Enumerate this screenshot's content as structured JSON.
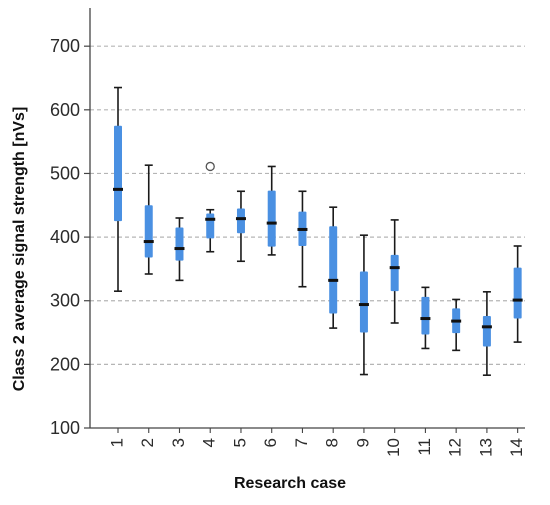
{
  "chart_data": {
    "type": "boxplot",
    "title": "",
    "xlabel": "Research case",
    "ylabel": "Class 2 average signal strength [nVs]",
    "ylim": [
      100,
      760
    ],
    "yticks": [
      100,
      200,
      300,
      400,
      500,
      600,
      700
    ],
    "grid": "horizontal dashed",
    "categories": [
      "1",
      "2",
      "3",
      "4",
      "5",
      "6",
      "7",
      "8",
      "9",
      "10",
      "11",
      "12",
      "13",
      "14"
    ],
    "boxes": [
      {
        "min": 315,
        "q1": 425,
        "median": 475,
        "q3": 575,
        "max": 635
      },
      {
        "min": 342,
        "q1": 368,
        "median": 393,
        "q3": 450,
        "max": 513
      },
      {
        "min": 332,
        "q1": 363,
        "median": 382,
        "q3": 415,
        "max": 430
      },
      {
        "min": 377,
        "q1": 398,
        "median": 428,
        "q3": 437,
        "max": 443
      },
      {
        "min": 362,
        "q1": 406,
        "median": 429,
        "q3": 445,
        "max": 472
      },
      {
        "min": 372,
        "q1": 385,
        "median": 422,
        "q3": 473,
        "max": 511
      },
      {
        "min": 322,
        "q1": 386,
        "median": 412,
        "q3": 440,
        "max": 472
      },
      {
        "min": 257,
        "q1": 280,
        "median": 332,
        "q3": 417,
        "max": 447
      },
      {
        "min": 184,
        "q1": 250,
        "median": 294,
        "q3": 346,
        "max": 403
      },
      {
        "min": 265,
        "q1": 315,
        "median": 352,
        "q3": 372,
        "max": 427
      },
      {
        "min": 225,
        "q1": 247,
        "median": 272,
        "q3": 306,
        "max": 321
      },
      {
        "min": 222,
        "q1": 249,
        "median": 268,
        "q3": 288,
        "max": 302
      },
      {
        "min": 183,
        "q1": 228,
        "median": 259,
        "q3": 276,
        "max": 314
      },
      {
        "min": 235,
        "q1": 272,
        "median": 301,
        "q3": 352,
        "max": 386
      }
    ],
    "outliers": [
      {
        "category": "4",
        "value": 511
      }
    ],
    "colors": {
      "box": "#4a90e2",
      "whisker": "#1a1a1a",
      "median": "#111111",
      "grid": "#b5b5b5",
      "axis": "#444444",
      "text": "#2b2b2b"
    }
  }
}
